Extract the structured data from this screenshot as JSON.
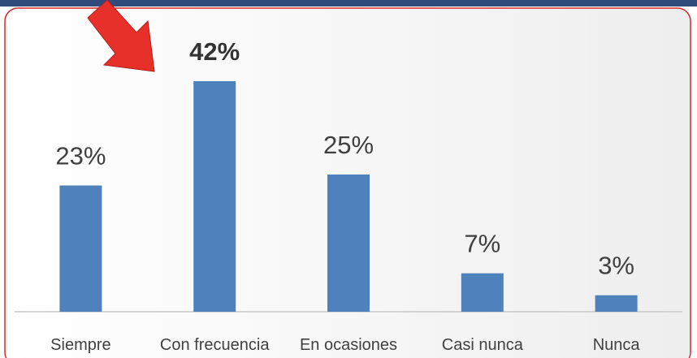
{
  "chart_data": {
    "type": "bar",
    "categories": [
      "Siempre",
      "Con frecuencia",
      "En ocasiones",
      "Casi nunca",
      "Nunca"
    ],
    "values": [
      23,
      42,
      25,
      7,
      3
    ],
    "value_labels": [
      "23%",
      "42%",
      "25%",
      "7%",
      "3%"
    ],
    "color": "#4f81bd"
  }
}
